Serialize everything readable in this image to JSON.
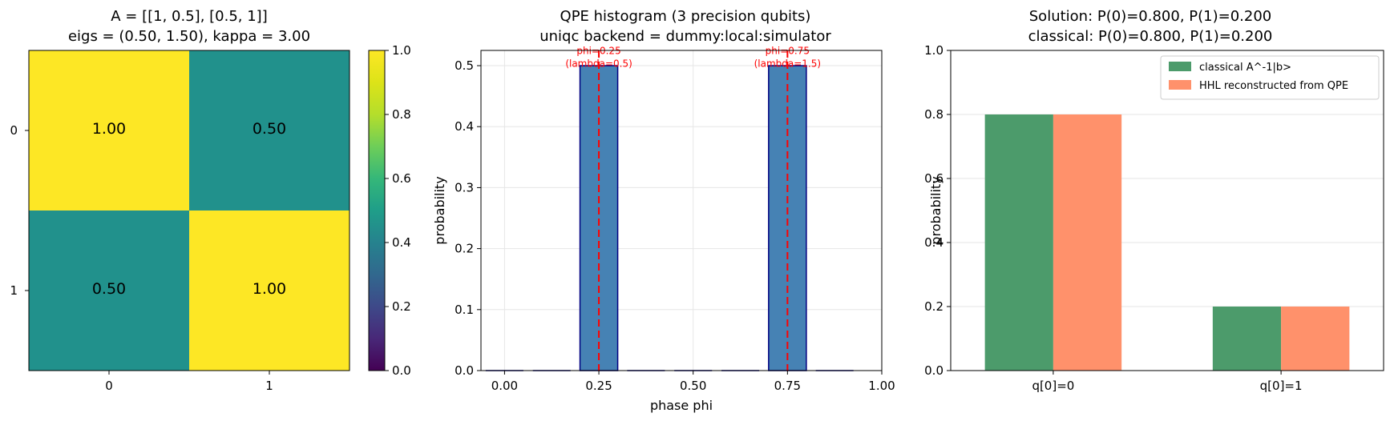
{
  "chart_data": [
    {
      "type": "heatmap",
      "title_line1": "A = [[1, 0.5], [0.5, 1]]",
      "title_line2": "eigs = (0.50, 1.50),  kappa = 3.00",
      "row_labels": [
        "0",
        "1"
      ],
      "col_labels": [
        "0",
        "1"
      ],
      "values": [
        [
          1.0,
          0.5
        ],
        [
          0.5,
          1.0
        ]
      ],
      "cell_text": [
        [
          "1.00",
          "0.50"
        ],
        [
          "0.50",
          "1.00"
        ]
      ],
      "colormap": "viridis",
      "colors": {
        "1.0": "#fde725",
        "0.5": "#21918c"
      },
      "colorbar": {
        "range": [
          0,
          1
        ],
        "ticks": [
          "0.0",
          "0.2",
          "0.4",
          "0.6",
          "0.8",
          "1.0"
        ]
      }
    },
    {
      "type": "bar",
      "title_line1": "QPE histogram (3 precision qubits)",
      "title_line2": "uniqc backend = dummy:local:simulator",
      "xlabel": "phase phi",
      "ylabel": "probability",
      "x": [
        0.0,
        0.125,
        0.25,
        0.375,
        0.5,
        0.625,
        0.75,
        0.875
      ],
      "values": [
        0,
        0,
        0.5,
        0,
        0,
        0,
        0.5,
        0
      ],
      "xlim": [
        -0.0625,
        1.0
      ],
      "ylim": [
        0,
        0.525
      ],
      "xticks": [
        "0.00",
        "0.25",
        "0.50",
        "0.75",
        "1.00"
      ],
      "yticks": [
        "0.0",
        "0.1",
        "0.2",
        "0.3",
        "0.4",
        "0.5"
      ],
      "grid": true,
      "bar_color": "#4682b4",
      "edge_color": "#000080",
      "vlines": [
        {
          "x": 0.25,
          "label_line1": "phi=0.25",
          "label_line2": "(lambda=0.5)"
        },
        {
          "x": 0.75,
          "label_line1": "phi=0.75",
          "label_line2": "(lambda=1.5)"
        }
      ],
      "vline_color": "#ff0000"
    },
    {
      "type": "bar",
      "title_line1": "Solution: P(0)=0.800, P(1)=0.200",
      "title_line2": "classical: P(0)=0.800, P(1)=0.200",
      "ylabel": "probability",
      "categories": [
        "q[0]=0",
        "q[0]=1"
      ],
      "series": [
        {
          "name": "classical A^-1|b>",
          "values": [
            0.8,
            0.2
          ],
          "color": "#4c9b6b"
        },
        {
          "name": "HHL reconstructed from QPE",
          "values": [
            0.8,
            0.2
          ],
          "color": "#ff916b"
        }
      ],
      "ylim": [
        0,
        1.0
      ],
      "yticks": [
        "0.0",
        "0.2",
        "0.4",
        "0.6",
        "0.8",
        "1.0"
      ],
      "grid": true,
      "legend_position": "upper right"
    }
  ]
}
